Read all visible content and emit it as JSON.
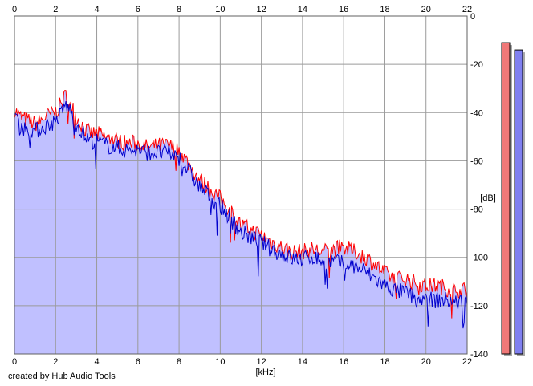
{
  "credit": "created by Hub Audio Tools",
  "chart_data": {
    "type": "area",
    "xlabel": "[kHz]",
    "ylabel": "[dB]",
    "xlim": [
      0,
      22
    ],
    "ylim": [
      -140,
      0
    ],
    "x_ticks": [
      "0",
      "2",
      "4",
      "6",
      "8",
      "10",
      "12",
      "14",
      "16",
      "18",
      "20",
      "22"
    ],
    "y_ticks": [
      "0",
      "-20",
      "-40",
      "-60",
      "-80",
      "-100",
      "-120",
      "-140"
    ],
    "grid": true,
    "colors": {
      "fill": "#c0c0ff",
      "series_red": "#ff0000",
      "series_blue": "#0000cc",
      "meter_red": "#f07878",
      "meter_blue": "#8080f0"
    },
    "series": [
      {
        "color": "red",
        "x": [
          0,
          0.25,
          0.5,
          0.75,
          1.0,
          1.25,
          1.5,
          1.75,
          2.0,
          2.25,
          2.5,
          2.75,
          3.0,
          3.25,
          3.5,
          3.75,
          4.0,
          4.5,
          5.0,
          5.5,
          6.0,
          6.5,
          7.0,
          7.5,
          8.0,
          8.5,
          9.0,
          9.5,
          10.0,
          10.5,
          11.0,
          11.5,
          12.0,
          12.5,
          13.0,
          13.5,
          14.0,
          14.5,
          15.0,
          15.5,
          16.0,
          16.5,
          17.0,
          17.5,
          18.0,
          18.5,
          19.0,
          19.5,
          20.0,
          20.5,
          21.0,
          21.5,
          22.0
        ],
        "values": [
          -38,
          -41,
          -42,
          -43,
          -44,
          -43,
          -41,
          -40,
          -39,
          -36,
          -32,
          -36,
          -41,
          -44,
          -47,
          -48,
          -48,
          -50,
          -51,
          -52,
          -52,
          -54,
          -53,
          -53,
          -55,
          -61,
          -67,
          -71,
          -75,
          -80,
          -86,
          -88,
          -90,
          -93,
          -95,
          -97,
          -97,
          -96,
          -97,
          -96,
          -95,
          -97,
          -99,
          -102,
          -106,
          -108,
          -108,
          -110,
          -111,
          -111,
          -112,
          -113,
          -113
        ]
      },
      {
        "color": "blue",
        "x": [
          0,
          0.25,
          0.5,
          0.75,
          1.0,
          1.25,
          1.5,
          1.75,
          2.0,
          2.25,
          2.5,
          2.75,
          3.0,
          3.25,
          3.5,
          3.75,
          4.0,
          4.5,
          5.0,
          5.5,
          6.0,
          6.5,
          7.0,
          7.5,
          8.0,
          8.5,
          9.0,
          9.5,
          10.0,
          10.5,
          11.0,
          11.5,
          12.0,
          12.5,
          13.0,
          13.5,
          14.0,
          14.5,
          15.0,
          15.5,
          16.0,
          16.5,
          17.0,
          17.5,
          18.0,
          18.5,
          19.0,
          19.5,
          20.0,
          20.5,
          21.0,
          21.5,
          22.0
        ],
        "values": [
          -40,
          -44,
          -46,
          -46,
          -47,
          -46,
          -45,
          -44,
          -43,
          -40,
          -36,
          -39,
          -44,
          -47,
          -50,
          -51,
          -51,
          -53,
          -54,
          -55,
          -55,
          -56,
          -56,
          -56,
          -58,
          -64,
          -70,
          -74,
          -78,
          -83,
          -89,
          -91,
          -93,
          -96,
          -98,
          -100,
          -100,
          -99,
          -101,
          -101,
          -102,
          -103,
          -105,
          -108,
          -111,
          -113,
          -114,
          -116,
          -117,
          -117,
          -117,
          -118,
          -117
        ]
      }
    ],
    "meters": [
      {
        "color": "red",
        "top_db": -11
      },
      {
        "color": "blue",
        "top_db": -14
      }
    ]
  }
}
